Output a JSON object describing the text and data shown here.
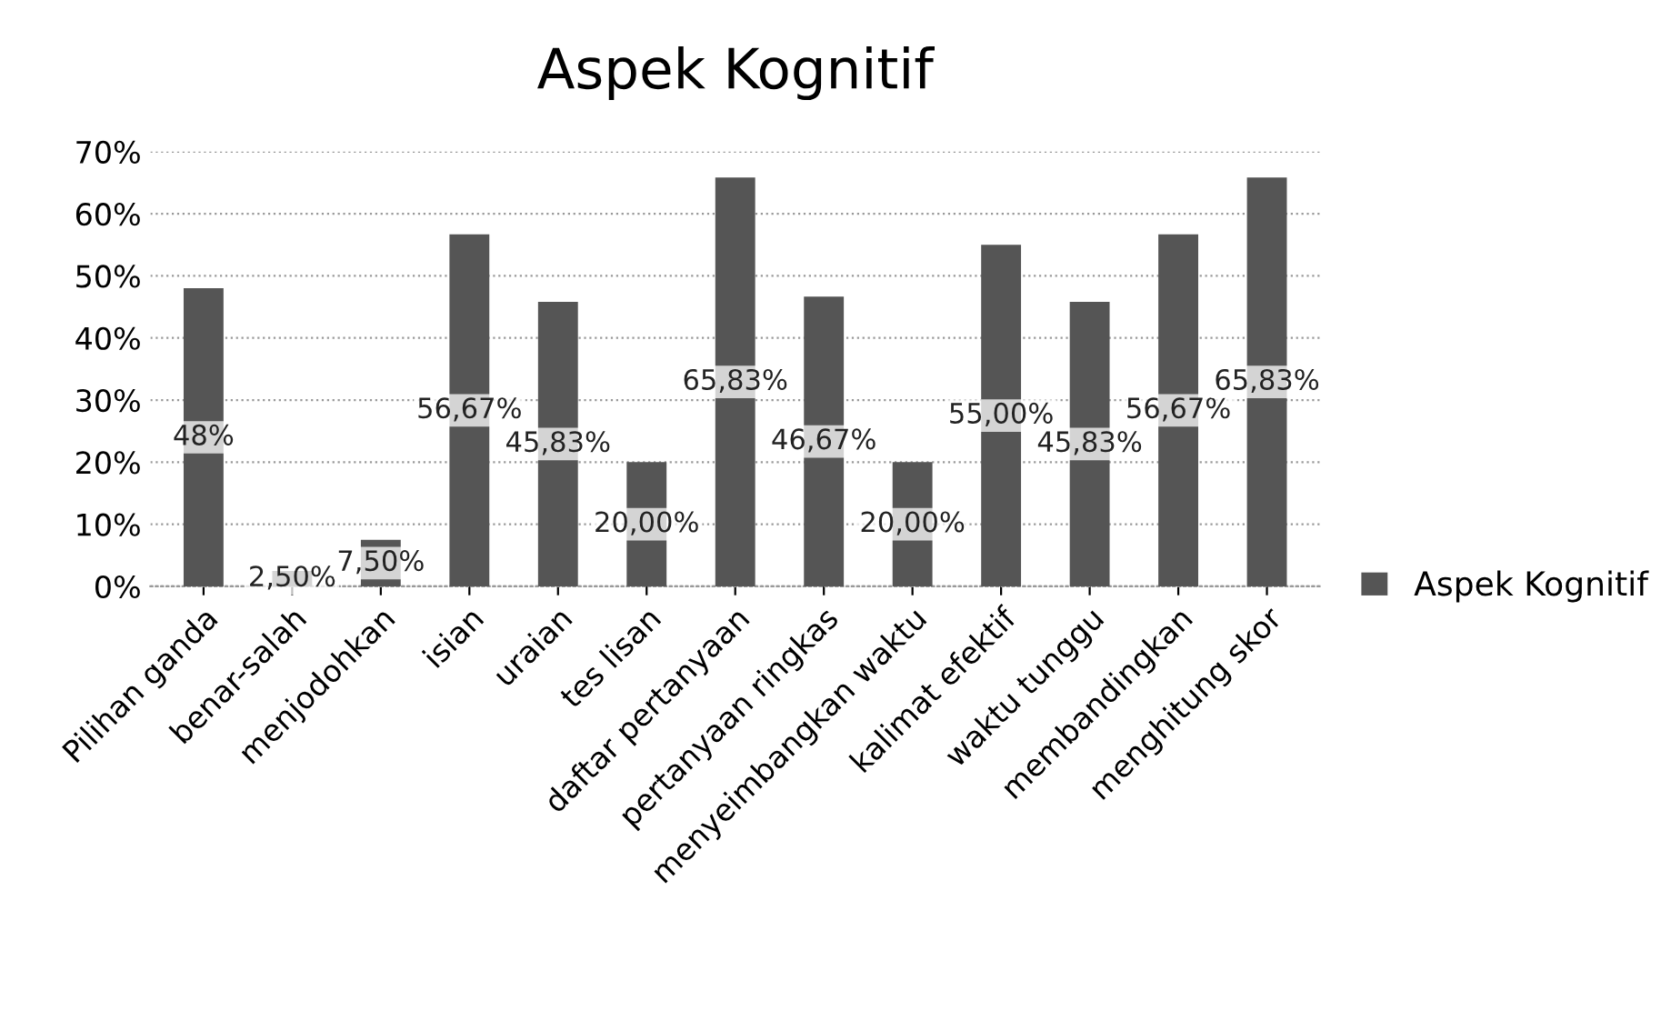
{
  "chart_data": {
    "type": "bar",
    "title": "Aspek Kognitif",
    "categories": [
      "Pilihan ganda",
      "benar-salah",
      "menjodohkan",
      "isian",
      "uraian",
      "tes lisan",
      "daftar pertanyaan",
      "pertanyaan ringkas",
      "menyeimbangkan waktu",
      "kalimat efektif",
      "waktu tunggu",
      "membandingkan",
      "menghitung skor"
    ],
    "series": [
      {
        "name": "Aspek Kognitif",
        "color": "#555555",
        "values": [
          48,
          2.5,
          7.5,
          56.67,
          45.83,
          20,
          65.83,
          46.67,
          20,
          55,
          45.83,
          56.67,
          65.83
        ],
        "value_labels": [
          "48%",
          "2,50%",
          "7,50%",
          "56,67%",
          "45,83%",
          "20,00%",
          "65,83%",
          "46,67%",
          "20,00%",
          "55,00%",
          "45,83%",
          "56,67%",
          "65,83%"
        ]
      }
    ],
    "ylim": [
      0,
      70
    ],
    "yticks": [
      {
        "value": 0,
        "label": "0%"
      },
      {
        "value": 10,
        "label": "10%"
      },
      {
        "value": 20,
        "label": "20%"
      },
      {
        "value": 30,
        "label": "30%"
      },
      {
        "value": 40,
        "label": "40%"
      },
      {
        "value": 50,
        "label": "50%"
      },
      {
        "value": 60,
        "label": "60%"
      },
      {
        "value": 70,
        "label": "70%"
      }
    ],
    "grid": "y",
    "legend": "right"
  }
}
